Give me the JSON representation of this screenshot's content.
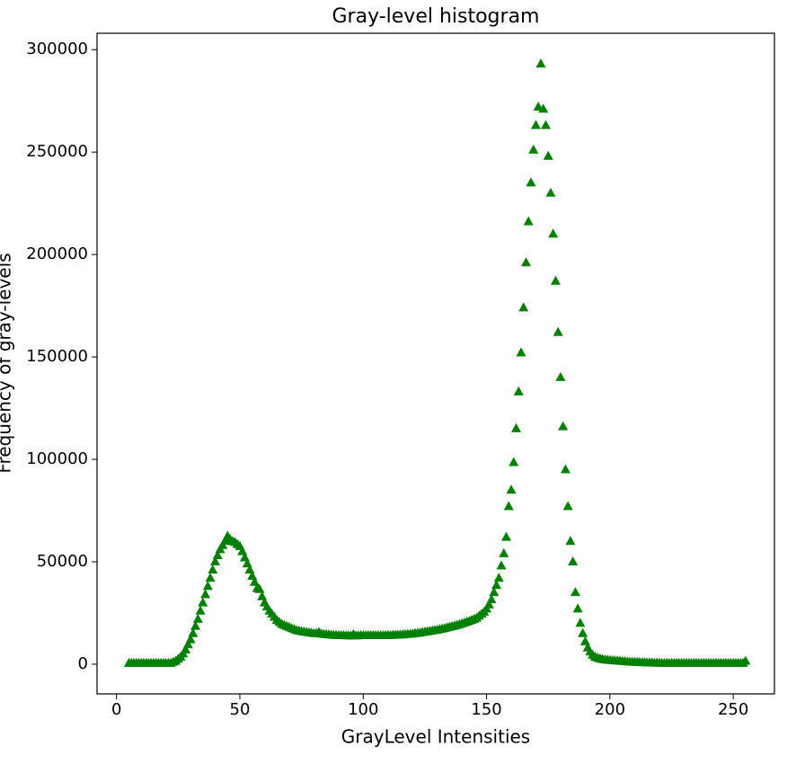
{
  "chart_data": {
    "type": "scatter",
    "title": "Gray-level histogram",
    "x_label": "GrayLevel Intensities",
    "y_label": "Frequency of gray-levels",
    "marker": "triangle",
    "series": [
      {
        "color": "#008000",
        "x": [
          5,
          6,
          7,
          8,
          9,
          10,
          11,
          12,
          13,
          14,
          15,
          16,
          17,
          18,
          19,
          20,
          21,
          22,
          23,
          24,
          25,
          26,
          27,
          28,
          29,
          30,
          31,
          32,
          33,
          34,
          35,
          36,
          37,
          38,
          39,
          40,
          41,
          42,
          43,
          44,
          45,
          46,
          47,
          48,
          49,
          50,
          51,
          52,
          53,
          54,
          55,
          56,
          57,
          58,
          59,
          60,
          61,
          62,
          63,
          64,
          65,
          66,
          67,
          68,
          69,
          70,
          71,
          72,
          73,
          74,
          75,
          76,
          77,
          78,
          79,
          80,
          81,
          82,
          83,
          84,
          85,
          86,
          87,
          88,
          89,
          90,
          91,
          92,
          93,
          94,
          95,
          96,
          97,
          98,
          99,
          100,
          101,
          102,
          103,
          104,
          105,
          106,
          107,
          108,
          109,
          110,
          111,
          112,
          113,
          114,
          115,
          116,
          117,
          118,
          119,
          120,
          121,
          122,
          123,
          124,
          125,
          126,
          127,
          128,
          129,
          130,
          131,
          132,
          133,
          134,
          135,
          136,
          137,
          138,
          139,
          140,
          141,
          142,
          143,
          144,
          145,
          146,
          147,
          148,
          149,
          150,
          151,
          152,
          153,
          154,
          155,
          156,
          157,
          158,
          159,
          160,
          161,
          162,
          163,
          164,
          165,
          166,
          167,
          168,
          169,
          170,
          171,
          172,
          173,
          174,
          175,
          176,
          177,
          178,
          179,
          180,
          181,
          182,
          183,
          184,
          185,
          186,
          187,
          188,
          189,
          190,
          191,
          192,
          193,
          194,
          195,
          196,
          197,
          198,
          199,
          200,
          201,
          202,
          203,
          204,
          205,
          206,
          207,
          208,
          209,
          210,
          211,
          212,
          213,
          214,
          215,
          216,
          217,
          218,
          219,
          220,
          221,
          222,
          223,
          224,
          225,
          226,
          227,
          228,
          229,
          230,
          231,
          232,
          233,
          234,
          235,
          236,
          237,
          238,
          239,
          240,
          241,
          242,
          243,
          244,
          245,
          246,
          247,
          248,
          249,
          250,
          251,
          252,
          253,
          254,
          255
        ],
        "values": [
          500,
          500,
          500,
          500,
          500,
          500,
          500,
          500,
          500,
          500,
          500,
          500,
          500,
          500,
          500,
          500,
          500,
          500,
          1000,
          1500,
          2500,
          3500,
          5000,
          7000,
          9500,
          12000,
          15000,
          18500,
          22000,
          26000,
          30000,
          34000,
          38000,
          42000,
          46000,
          50000,
          53000,
          56000,
          58000,
          60000,
          62500,
          61000,
          60000,
          59500,
          58500,
          57500,
          55000,
          52000,
          49000,
          46000,
          43000,
          40000,
          37000,
          36500,
          33000,
          30000,
          28000,
          26000,
          24500,
          23000,
          21500,
          20500,
          19500,
          19000,
          18500,
          18000,
          17500,
          17000,
          16500,
          16200,
          16000,
          15800,
          15600,
          15400,
          15200,
          15000,
          15000,
          15500,
          14800,
          14600,
          14500,
          14400,
          14300,
          14200,
          14100,
          14000,
          14000,
          14000,
          13900,
          13900,
          13800,
          14500,
          13900,
          13900,
          14000,
          14000,
          14000,
          14000,
          14000,
          14000,
          14000,
          14000,
          14000,
          14000,
          14000,
          14100,
          14100,
          14200,
          14200,
          14300,
          14300,
          14400,
          14500,
          14600,
          14700,
          14800,
          15000,
          15100,
          15300,
          15500,
          15700,
          15900,
          16100,
          16300,
          16500,
          16700,
          17000,
          17200,
          17500,
          17800,
          18100,
          18400,
          18700,
          19000,
          19400,
          19800,
          20200,
          20600,
          21000,
          21500,
          22000,
          22500,
          23500,
          24500,
          25500,
          27000,
          29000,
          31500,
          35000,
          38500,
          42000,
          48000,
          54000,
          62000,
          77000,
          85000,
          98500,
          115000,
          133000,
          152000,
          174000,
          196000,
          216000,
          235000,
          251000,
          263000,
          272000,
          293000,
          271000,
          263000,
          248000,
          230000,
          210000,
          187000,
          162000,
          140000,
          116000,
          95000,
          77000,
          60000,
          50000,
          35000,
          27000,
          20000,
          15000,
          11000,
          8000,
          6000,
          4500,
          3500,
          3000,
          2700,
          2400,
          2200,
          2000,
          1900,
          1800,
          1700,
          1600,
          1500,
          1400,
          1300,
          1200,
          1100,
          1000,
          1000,
          900,
          900,
          800,
          800,
          700,
          700,
          700,
          600,
          600,
          600,
          500,
          500,
          500,
          500,
          500,
          500,
          500,
          500,
          500,
          500,
          500,
          500,
          500,
          500,
          500,
          500,
          500,
          500,
          500,
          500,
          500,
          500,
          500,
          500,
          500,
          500,
          500,
          500,
          500,
          500,
          500,
          500,
          500,
          500,
          1500
        ]
      }
    ],
    "xlim": [
      -7.9,
      266.7
    ],
    "xticks": [
      0,
      50,
      100,
      150,
      200,
      250
    ],
    "ylim": [
      -14500,
      308000
    ],
    "yticks": [
      0,
      50000,
      100000,
      150000,
      200000,
      250000,
      300000
    ],
    "grid": false
  }
}
